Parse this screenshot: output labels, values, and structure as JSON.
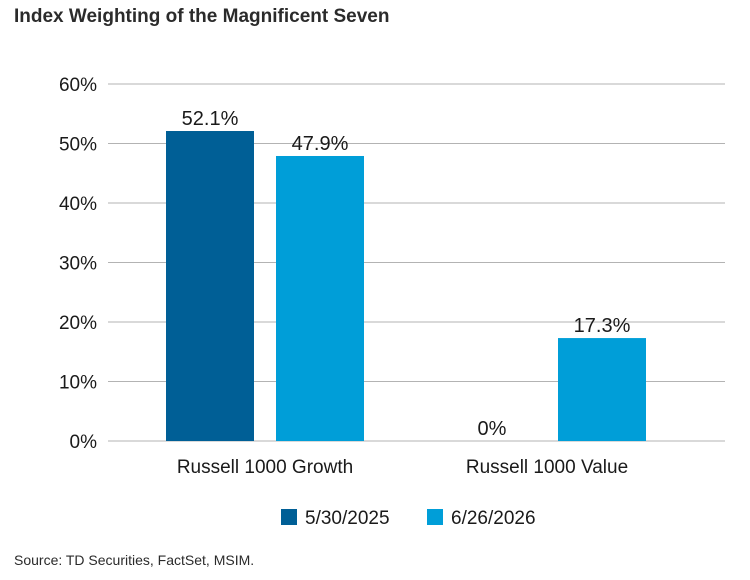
{
  "chart_data": {
    "type": "bar",
    "title": "Index Weighting of the Magnificent Seven",
    "categories": [
      "Russell 1000 Growth",
      "Russell 1000 Value"
    ],
    "series": [
      {
        "name": "5/30/2025",
        "color": "#005f96",
        "values": [
          52.1,
          0
        ],
        "labels": [
          "52.1%",
          "0%"
        ]
      },
      {
        "name": "6/26/2026",
        "color": "#009ed8",
        "values": [
          47.9,
          17.3
        ],
        "labels": [
          "47.9%",
          "17.3%"
        ]
      }
    ],
    "ylim": [
      0,
      60
    ],
    "yticks": [
      "0%",
      "10%",
      "20%",
      "30%",
      "40%",
      "50%",
      "60%"
    ],
    "xlabel": "",
    "ylabel": "",
    "grid": true,
    "gridline_color": "#b3b3b3",
    "legend_position": "bottom-center",
    "source": "Source: TD Securities, FactSet, MSIM."
  }
}
